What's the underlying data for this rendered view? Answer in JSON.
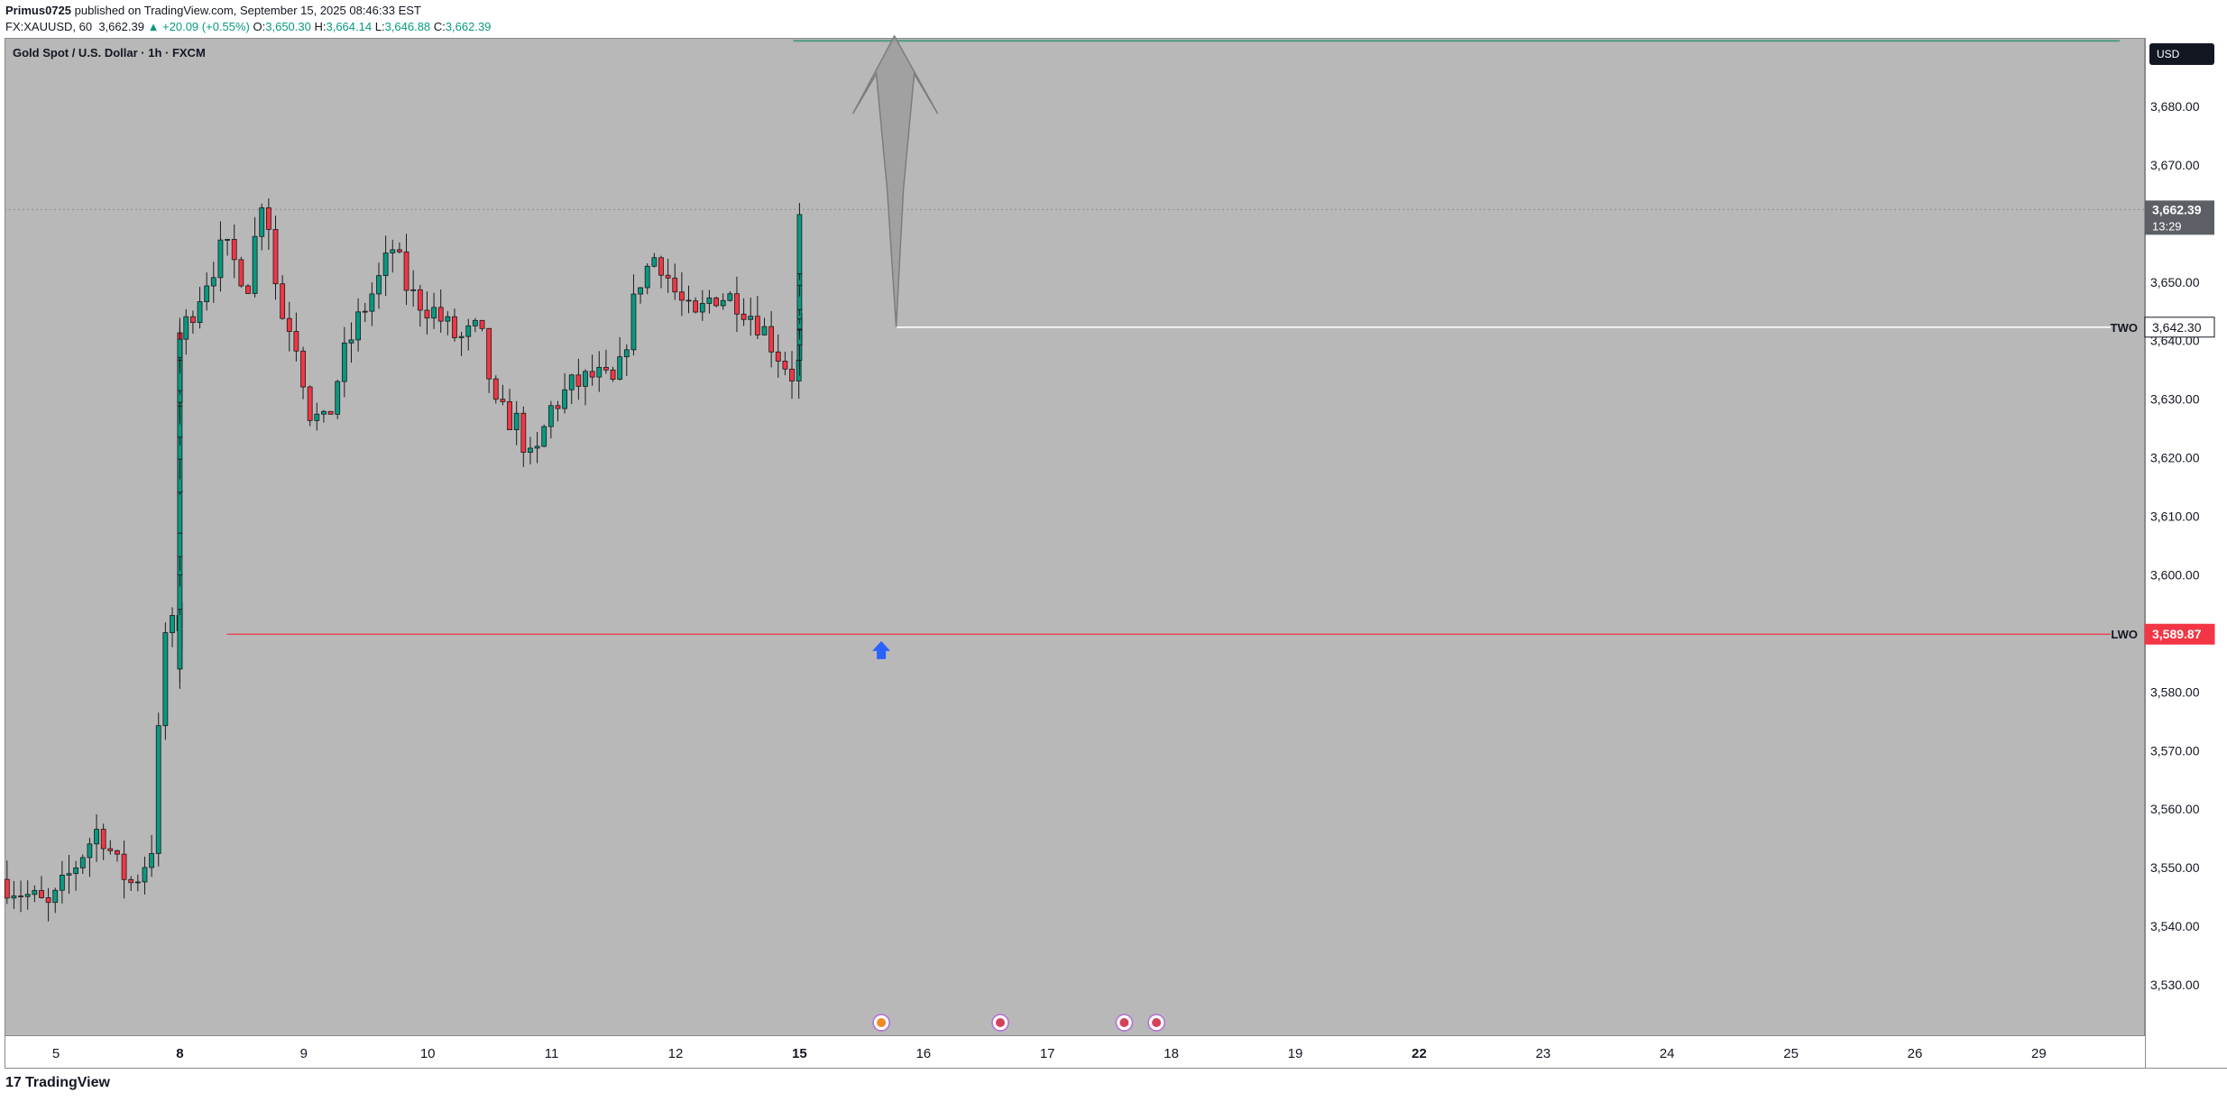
{
  "header": {
    "publisher": "Primus0725",
    "published_text": "published on TradingView.com, September 15, 2025 08:46:33 EST",
    "symbol": "FX:XAUUSD, 60",
    "last": "3,662.39",
    "change": "▲ +20.09 (+0.55%)",
    "o_label": "O:",
    "o_value": "3,650.30",
    "h_label": "H:",
    "h_value": "3,664.14",
    "l_label": "L:",
    "l_value": "3,646.88",
    "c_label": "C:",
    "c_value": "3,662.39"
  },
  "pane_title": "Gold Spot / U.S. Dollar · 1h · FXCM",
  "currency_button": "USD",
  "footer": {
    "logo_glyph": "17",
    "brand": "TradingView"
  },
  "colors": {
    "up": "#089981",
    "down": "#f23645",
    "background": "#b8b8b8",
    "two_line": "#ffffff",
    "lwo_line": "#f23645",
    "marker": "#2962ff"
  },
  "chart_data": {
    "type": "candlestick",
    "title": "Gold Spot / U.S. Dollar · 1h · FXCM",
    "ylim": [
      3520,
      3690
    ],
    "y_ticks": [
      3530,
      3540,
      3550,
      3560,
      3570,
      3580,
      3590,
      3600,
      3610,
      3620,
      3630,
      3640,
      3650,
      3660,
      3670,
      3680
    ],
    "y_tick_labels": [
      "3,530.00",
      "3,540.00",
      "3,550.00",
      "3,560.00",
      "3,570.00",
      "3,580.00",
      "3,590.00",
      "3,600.00",
      "3,610.00",
      "3,620.00",
      "3,630.00",
      "3,640.00",
      "3,650.00",
      "3,660.00",
      "3,670.00",
      "3,680.00"
    ],
    "x_ticks": [
      {
        "label": "5",
        "day": 5,
        "bold": false
      },
      {
        "label": "8",
        "day": 8,
        "bold": true
      },
      {
        "label": "9",
        "day": 9,
        "bold": false
      },
      {
        "label": "10",
        "day": 10,
        "bold": false
      },
      {
        "label": "11",
        "day": 11,
        "bold": false
      },
      {
        "label": "12",
        "day": 12,
        "bold": false
      },
      {
        "label": "15",
        "day": 15,
        "bold": true
      },
      {
        "label": "16",
        "day": 16,
        "bold": false
      },
      {
        "label": "17",
        "day": 17,
        "bold": false
      },
      {
        "label": "18",
        "day": 18,
        "bold": false
      },
      {
        "label": "19",
        "day": 19,
        "bold": false
      },
      {
        "label": "22",
        "day": 22,
        "bold": true
      },
      {
        "label": "23",
        "day": 23,
        "bold": false
      },
      {
        "label": "24",
        "day": 24,
        "bold": false
      },
      {
        "label": "25",
        "day": 25,
        "bold": false
      },
      {
        "label": "26",
        "day": 26,
        "bold": false
      },
      {
        "label": "29",
        "day": 29,
        "bold": false
      }
    ],
    "last_price": {
      "value": 3662.39,
      "label": "3,662.39",
      "countdown": "13:29"
    },
    "levels": [
      {
        "name": "TWO",
        "value": 3642.3,
        "label": "3,642.30",
        "start_day": 15.78
      },
      {
        "name": "LWO",
        "value": 3589.87,
        "label": "3,589.87",
        "start_day": 8.38
      }
    ],
    "upper_level": {
      "value": 3691.2,
      "start_day": 12.95
    },
    "projection_arrow": {
      "day": 15.78,
      "from": 3642.3,
      "to": 3690
    },
    "marker": {
      "day": 15.66,
      "value": 3587
    },
    "event_days": [
      15.66,
      16.62,
      17.62,
      17.88
    ],
    "key_points": [
      {
        "day": 4.55,
        "value": 3548
      },
      {
        "day": 4.95,
        "value": 3543
      },
      {
        "day": 5.2,
        "value": 3552
      },
      {
        "day": 5.35,
        "value": 3557
      },
      {
        "day": 5.5,
        "value": 3550
      },
      {
        "day": 5.62,
        "value": 3547
      },
      {
        "day": 5.77,
        "value": 3553
      },
      {
        "day": 5.88,
        "value": 3590
      },
      {
        "day": 6.15,
        "value": 3594
      },
      {
        "day": 6.35,
        "value": 3592
      },
      {
        "day": 6.55,
        "value": 3590
      },
      {
        "day": 6.72,
        "value": 3588
      },
      {
        "day": 6.82,
        "value": 3582
      },
      {
        "day": 6.92,
        "value": 3598
      },
      {
        "day": 7.08,
        "value": 3612
      },
      {
        "day": 7.28,
        "value": 3622
      },
      {
        "day": 7.47,
        "value": 3640
      },
      {
        "day": 7.63,
        "value": 3636
      },
      {
        "day": 7.8,
        "value": 3630
      },
      {
        "day": 7.95,
        "value": 3638
      },
      {
        "day": 8.2,
        "value": 3650
      },
      {
        "day": 8.35,
        "value": 3656
      },
      {
        "day": 8.55,
        "value": 3650
      },
      {
        "day": 8.68,
        "value": 3667
      },
      {
        "day": 8.8,
        "value": 3645
      },
      {
        "day": 8.92,
        "value": 3642
      },
      {
        "day": 9.05,
        "value": 3628
      },
      {
        "day": 9.18,
        "value": 3625
      },
      {
        "day": 9.3,
        "value": 3636
      },
      {
        "day": 9.45,
        "value": 3644
      },
      {
        "day": 9.6,
        "value": 3650
      },
      {
        "day": 9.72,
        "value": 3656
      },
      {
        "day": 9.85,
        "value": 3648
      },
      {
        "day": 10.05,
        "value": 3645
      },
      {
        "day": 10.25,
        "value": 3640
      },
      {
        "day": 10.42,
        "value": 3642
      },
      {
        "day": 10.55,
        "value": 3628
      },
      {
        "day": 10.72,
        "value": 3626
      },
      {
        "day": 10.85,
        "value": 3618
      },
      {
        "day": 10.98,
        "value": 3628
      },
      {
        "day": 11.15,
        "value": 3632
      },
      {
        "day": 11.35,
        "value": 3634
      },
      {
        "day": 11.52,
        "value": 3632
      },
      {
        "day": 11.7,
        "value": 3650
      },
      {
        "day": 11.85,
        "value": 3655
      },
      {
        "day": 12.0,
        "value": 3648
      },
      {
        "day": 12.15,
        "value": 3643
      },
      {
        "day": 12.3,
        "value": 3648
      },
      {
        "day": 12.5,
        "value": 3647
      },
      {
        "day": 12.68,
        "value": 3643
      },
      {
        "day": 12.82,
        "value": 3638
      },
      {
        "day": 12.95,
        "value": 3634
      },
      {
        "day": 13.05,
        "value": 3638
      },
      {
        "day": 13.2,
        "value": 3645
      },
      {
        "day": 13.35,
        "value": 3641
      },
      {
        "day": 13.5,
        "value": 3640
      },
      {
        "day": 13.62,
        "value": 3644
      },
      {
        "day": 13.75,
        "value": 3650
      },
      {
        "day": 13.85,
        "value": 3662
      }
    ]
  }
}
